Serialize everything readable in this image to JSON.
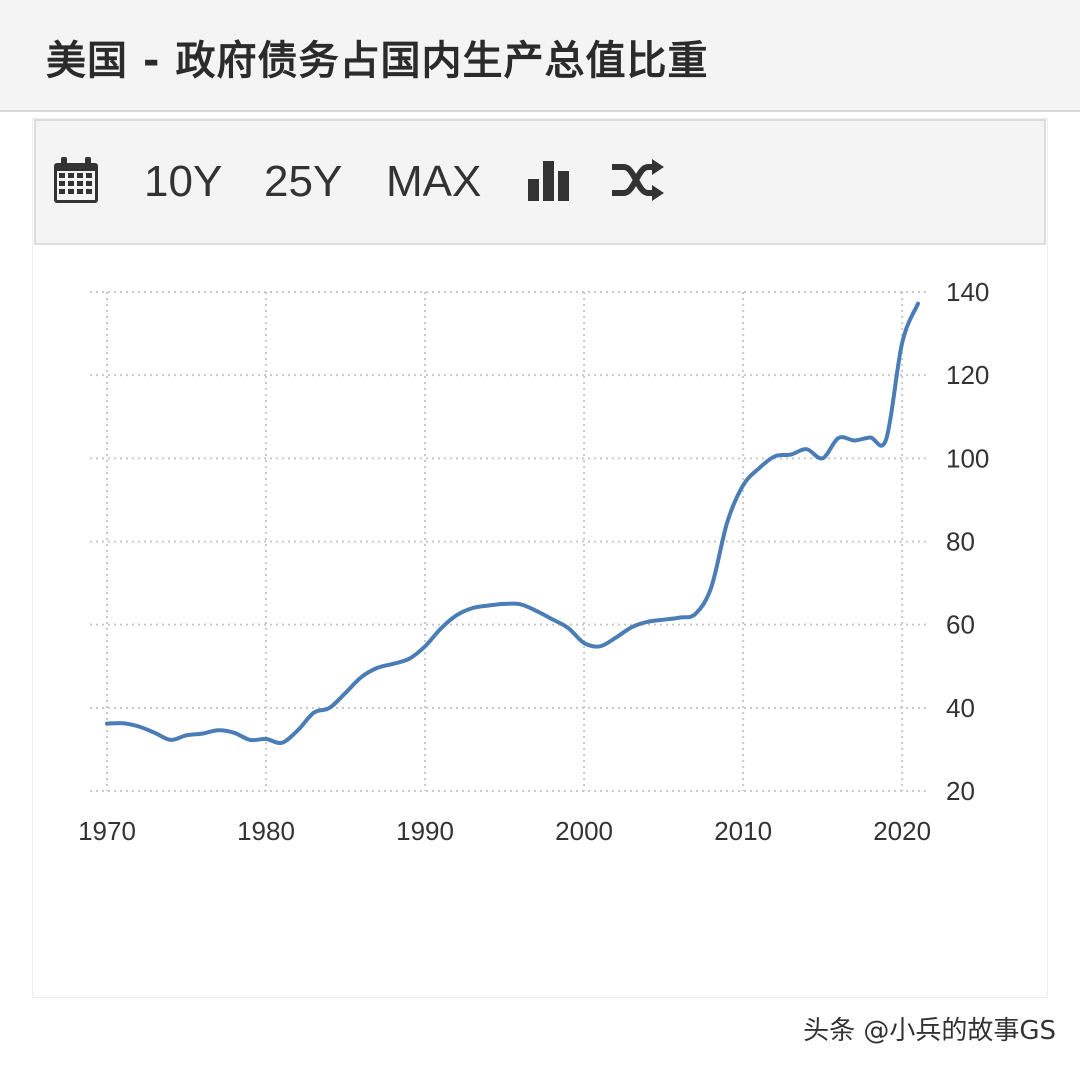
{
  "header": {
    "title": "美国 - 政府债务占国内生产总值比重"
  },
  "toolbar": {
    "calendar_icon": "calendar-icon",
    "range_10y": "10Y",
    "range_25y": "25Y",
    "range_max": "MAX",
    "bar_chart_icon": "bar-chart-icon",
    "shuffle_icon": "shuffle-icon"
  },
  "watermark": "头条 @小兵的故事GS",
  "colors": {
    "line": "#4a7db5",
    "grid": "#c8c8c8",
    "header_bg": "#f4f4f4"
  },
  "chart_data": {
    "type": "line",
    "title": "美国 - 政府债务占国内生产总值比重",
    "xlabel": "",
    "ylabel": "",
    "xlim": [
      1970,
      2021.5
    ],
    "ylim": [
      20,
      140
    ],
    "x_ticks": [
      1970,
      1980,
      1990,
      2000,
      2010,
      2020
    ],
    "y_ticks": [
      20,
      40,
      60,
      80,
      100,
      120,
      140
    ],
    "grid": true,
    "y_axis_side": "right",
    "series": [
      {
        "x": [
          1970,
          1971,
          1972,
          1973,
          1974,
          1975,
          1976,
          1977,
          1978,
          1979,
          1980,
          1981,
          1982,
          1983,
          1984,
          1985,
          1986,
          1987,
          1988,
          1989,
          1990,
          1991,
          1992,
          1993,
          1994,
          1995,
          1996,
          1997,
          1998,
          1999,
          2000,
          2001,
          2002,
          2003,
          2004,
          2005,
          2006,
          2007,
          2008,
          2009,
          2010,
          2011,
          2012,
          2013,
          2014,
          2015,
          2016,
          2017,
          2018,
          2019,
          2020,
          2021
        ],
        "values": [
          36.2,
          36.3,
          35.5,
          34.0,
          32.3,
          33.4,
          33.8,
          34.6,
          34.0,
          32.3,
          32.5,
          31.6,
          34.6,
          38.8,
          40.0,
          43.6,
          47.4,
          49.6,
          50.6,
          51.8,
          54.8,
          59.1,
          62.3,
          64.0,
          64.6,
          65.0,
          64.9,
          63.3,
          61.3,
          59.2,
          55.6,
          54.8,
          56.9,
          59.4,
          60.7,
          61.2,
          61.7,
          62.6,
          69.0,
          84.6,
          93.5,
          97.6,
          100.5,
          100.9,
          102.2,
          100.0,
          104.9,
          104.3,
          105.0,
          104.6,
          127.7,
          137.2
        ]
      }
    ]
  }
}
